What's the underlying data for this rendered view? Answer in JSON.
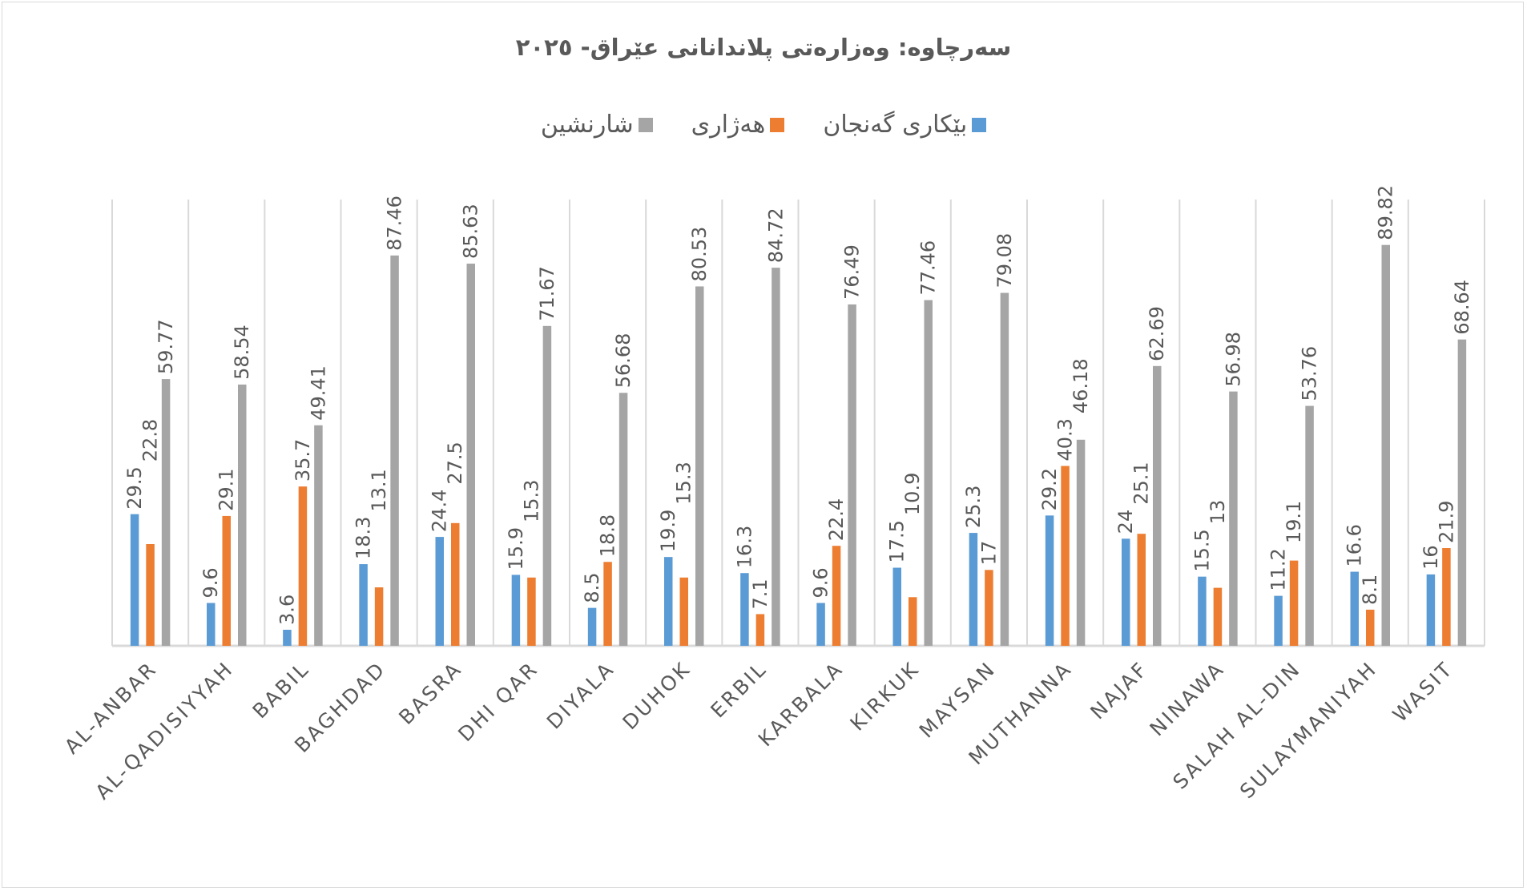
{
  "chart_data": {
    "type": "bar",
    "title": "سەرچاوە: وەزارەتی پلاندانانی عێراق- ٢٠٢٥",
    "categories": [
      "AL-ANBAR",
      "AL-QADISIYYAH",
      "BABIL",
      "BAGHDAD",
      "BASRA",
      "DHI QAR",
      "DIYALA",
      "DUHOK",
      "ERBIL",
      "KARBALA",
      "KIRKUK",
      "MAYSAN",
      "MUTHANNA",
      "NAJAF",
      "NINAWA",
      "SALAH AL-DIN",
      "SULAYMANIYAH",
      "WASIT"
    ],
    "series": [
      {
        "name": "بێکاری گەنجان",
        "color": "#5b9bd5",
        "values": [
          29.5,
          9.6,
          3.6,
          18.3,
          24.4,
          15.9,
          8.5,
          19.9,
          16.3,
          9.6,
          17.5,
          25.3,
          29.2,
          24,
          15.5,
          11.2,
          16.6,
          16
        ]
      },
      {
        "name": "هەژاری",
        "color": "#ed7d31",
        "values": [
          22.8,
          29.1,
          35.7,
          13.1,
          27.5,
          15.3,
          18.8,
          15.3,
          7.1,
          22.4,
          10.9,
          17,
          40.3,
          25.1,
          13,
          19.1,
          8.1,
          21.9
        ]
      },
      {
        "name": "شارنشین",
        "color": "#a5a5a5",
        "values": [
          59.77,
          58.54,
          49.41,
          87.46,
          85.63,
          71.67,
          56.68,
          80.53,
          84.72,
          76.49,
          77.46,
          79.08,
          46.18,
          62.69,
          56.98,
          53.76,
          89.82,
          68.64
        ]
      }
    ],
    "ylim": [
      0,
      100
    ],
    "grid": "vertical category separators",
    "legend_position": "top",
    "xlabel": "",
    "ylabel": ""
  }
}
